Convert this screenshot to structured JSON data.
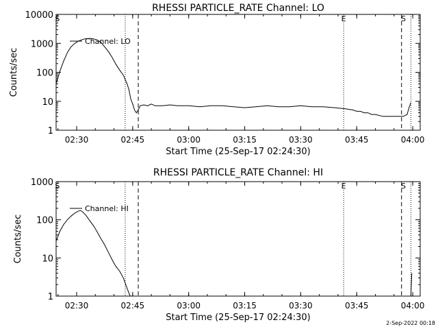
{
  "chart_data": [
    {
      "type": "line",
      "title": "RHESSI PARTICLE_RATE Channel: LO",
      "xlabel": "Start Time (25-Sep-17 02:24:30)",
      "ylabel": "Counts/sec",
      "yscale": "log",
      "ylim": [
        1,
        10000
      ],
      "xlim": [
        "02:24:30",
        "04:02:00"
      ],
      "x_ticks": [
        "02:30",
        "02:45",
        "03:00",
        "03:15",
        "03:30",
        "03:45",
        "04:00"
      ],
      "y_ticks": [
        "1",
        "10",
        "100",
        "1000",
        "10000"
      ],
      "legend": {
        "position": "top-left",
        "entries": [
          "Channel: LO"
        ]
      },
      "series": [
        {
          "name": "Channel: LO",
          "x": [
            "02:24:30",
            "02:25:30",
            "02:26:30",
            "02:27:30",
            "02:28:30",
            "02:29:30",
            "02:30:30",
            "02:31:30",
            "02:32:30",
            "02:33:30",
            "02:34:30",
            "02:35:30",
            "02:36:30",
            "02:37:30",
            "02:38:30",
            "02:39:30",
            "02:40:30",
            "02:41:30",
            "02:42:30",
            "02:43:30",
            "02:44:00",
            "02:44:30",
            "02:45:00",
            "02:45:30",
            "02:46:00",
            "02:46:30",
            "02:47:00",
            "02:48:00",
            "02:49:00",
            "02:50:00",
            "02:51:00",
            "02:53:00",
            "02:55:00",
            "02:57:00",
            "03:00:00",
            "03:03:00",
            "03:06:00",
            "03:09:00",
            "03:12:00",
            "03:15:00",
            "03:18:00",
            "03:21:00",
            "03:24:00",
            "03:27:00",
            "03:30:00",
            "03:33:00",
            "03:36:00",
            "03:39:00",
            "03:42:00",
            "03:44:00",
            "03:45:00",
            "03:46:00",
            "03:47:00",
            "03:48:00",
            "03:49:00",
            "03:50:00",
            "03:52:00",
            "03:54:00",
            "03:55:30",
            "03:56:30",
            "03:57:30",
            "03:58:30",
            "03:59:00",
            "03:59:30"
          ],
          "y": [
            40,
            110,
            240,
            480,
            760,
            1000,
            1200,
            1350,
            1450,
            1480,
            1430,
            1300,
            1080,
            760,
            520,
            330,
            190,
            120,
            80,
            40,
            25,
            12,
            8,
            5,
            4,
            5,
            7,
            7.5,
            7,
            8,
            7,
            7,
            7.5,
            7,
            7,
            6.5,
            7,
            7,
            6.5,
            6,
            6.5,
            7,
            6.5,
            6.5,
            7,
            6.5,
            6.5,
            6,
            5.5,
            5,
            4.5,
            4.5,
            4,
            4,
            3.5,
            3.5,
            3,
            3,
            3,
            3,
            3,
            3.5,
            6,
            9
          ]
        }
      ],
      "markers": [
        {
          "label": "S",
          "x": "02:24:50"
        },
        {
          "label": "E",
          "x": "03:41:30"
        },
        {
          "label": "S",
          "x": "03:57:30"
        }
      ],
      "dotted_lines_x": [
        "02:43:00",
        "03:41:30",
        "03:59:30"
      ],
      "dashed_lines_x": [
        "02:46:30",
        "03:57:00"
      ]
    },
    {
      "type": "line",
      "title": "RHESSI PARTICLE_RATE Channel: HI",
      "xlabel": "Start Time (25-Sep-17 02:24:30)",
      "ylabel": "Counts/sec",
      "yscale": "log",
      "ylim": [
        1,
        1000
      ],
      "xlim": [
        "02:24:30",
        "04:02:00"
      ],
      "x_ticks": [
        "02:30",
        "02:45",
        "03:00",
        "03:15",
        "03:30",
        "03:45",
        "04:00"
      ],
      "y_ticks": [
        "1",
        "10",
        "100",
        "1000"
      ],
      "legend": {
        "position": "top-left",
        "entries": [
          "Channel: HI"
        ]
      },
      "series": [
        {
          "name": "Channel: HI",
          "x": [
            "02:24:30",
            "02:25:30",
            "02:26:30",
            "02:27:30",
            "02:28:30",
            "02:29:30",
            "02:30:30",
            "02:31:00",
            "02:31:30",
            "02:32:30",
            "02:33:30",
            "02:34:30",
            "02:35:30",
            "02:36:30",
            "02:37:30",
            "02:38:30",
            "02:39:30",
            "02:40:30",
            "02:41:30",
            "02:42:30",
            "02:43:00",
            "02:43:30",
            "02:44:00",
            "02:44:20"
          ],
          "y": [
            28,
            50,
            75,
            100,
            125,
            150,
            170,
            175,
            165,
            130,
            95,
            70,
            48,
            32,
            22,
            14,
            9,
            6,
            4.5,
            3,
            2.2,
            1.6,
            1.2,
            1
          ],
          "gap_after_index": 23
        },
        {
          "name": "Channel: HI",
          "x": [
            "03:59:30",
            "03:59:45"
          ],
          "y": [
            1,
            4
          ]
        }
      ],
      "markers": [
        {
          "label": "S",
          "x": "02:24:50"
        },
        {
          "label": "E",
          "x": "03:41:30"
        },
        {
          "label": "S",
          "x": "03:57:30"
        }
      ],
      "dotted_lines_x": [
        "02:43:00",
        "03:41:30",
        "03:59:30"
      ],
      "dashed_lines_x": [
        "02:46:30",
        "03:57:00"
      ]
    }
  ],
  "footer": {
    "timestamp": "2-Sep-2022 00:18"
  }
}
